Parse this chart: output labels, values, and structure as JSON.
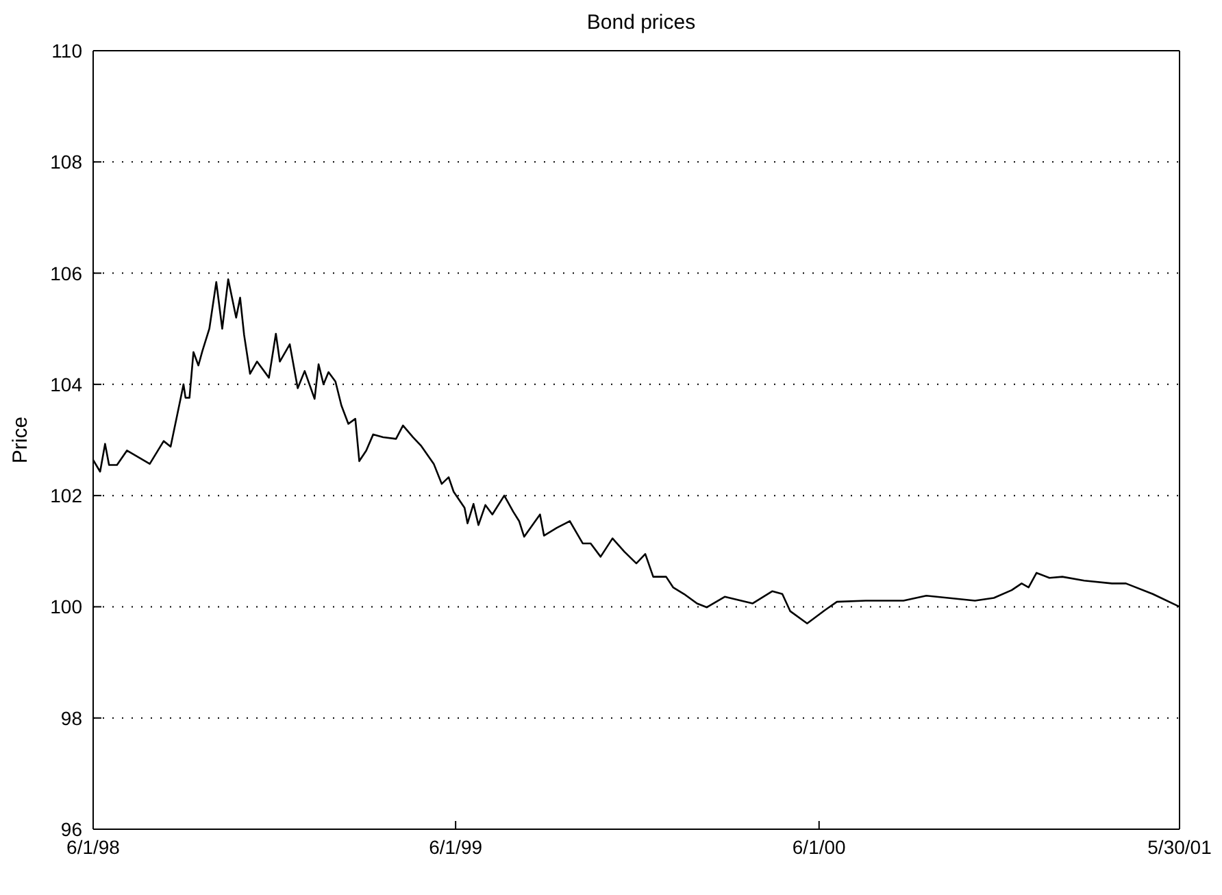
{
  "chart_data": {
    "type": "line",
    "title": "Bond prices",
    "ylabel": "Price",
    "x": [
      "1998-06-01",
      "1998-06-08",
      "1998-06-13",
      "1998-06-17",
      "1998-06-25",
      "1998-07-05",
      "1998-07-28",
      "1998-08-11",
      "1998-08-18",
      "1998-08-28",
      "1998-08-31",
      "1998-09-02",
      "1998-09-06",
      "1998-09-10",
      "1998-09-15",
      "1998-09-19",
      "1998-09-26",
      "1998-10-03",
      "1998-10-09",
      "1998-10-15",
      "1998-10-23",
      "1998-10-27",
      "1998-10-31",
      "1998-11-06",
      "1998-11-13",
      "1998-11-25",
      "1998-12-02",
      "1998-12-06",
      "1998-12-16",
      "1998-12-24",
      "1998-12-31",
      "1999-01-10",
      "1999-01-14",
      "1999-01-19",
      "1999-01-24",
      "1999-01-31",
      "1999-02-06",
      "1999-02-13",
      "1999-02-20",
      "1999-02-24",
      "1999-03-03",
      "1999-03-10",
      "1999-03-20",
      "1999-04-02",
      "1999-04-09",
      "1999-04-19",
      "1999-04-27",
      "1999-05-10",
      "1999-05-18",
      "1999-05-25",
      "1999-05-30",
      "1999-06-10",
      "1999-06-13",
      "1999-06-19",
      "1999-06-24",
      "1999-07-01",
      "1999-07-08",
      "1999-07-20",
      "1999-07-29",
      "1999-08-04",
      "1999-08-09",
      "1999-08-25",
      "1999-08-29",
      "1999-09-11",
      "1999-09-24",
      "1999-10-07",
      "1999-10-15",
      "1999-10-25",
      "1999-11-06",
      "1999-11-18",
      "1999-11-30",
      "1999-12-09",
      "1999-12-17",
      "1999-12-30",
      "2000-01-06",
      "2000-01-17",
      "2000-01-30",
      "2000-02-09",
      "2000-02-27",
      "2000-03-26",
      "2000-04-15",
      "2000-04-25",
      "2000-05-03",
      "2000-05-20",
      "2000-06-07",
      "2000-06-19",
      "2000-07-18",
      "2000-08-25",
      "2000-09-17",
      "2000-10-09",
      "2000-11-05",
      "2000-11-24",
      "2000-12-12",
      "2000-12-22",
      "2000-12-29",
      "2001-01-06",
      "2001-01-19",
      "2001-02-01",
      "2001-02-23",
      "2001-03-23",
      "2001-04-06",
      "2001-05-03",
      "2001-05-30"
    ],
    "series": [
      {
        "color": "#000000",
        "values": [
          102.64,
          102.43,
          102.93,
          102.55,
          102.55,
          102.81,
          102.57,
          102.98,
          102.88,
          103.74,
          104.0,
          103.76,
          103.76,
          104.58,
          104.34,
          104.6,
          105.0,
          105.84,
          105.0,
          105.89,
          105.2,
          105.56,
          104.89,
          104.19,
          104.41,
          104.12,
          104.91,
          104.41,
          104.72,
          103.93,
          104.24,
          103.74,
          104.36,
          104.0,
          104.22,
          104.05,
          103.62,
          103.29,
          103.38,
          102.62,
          102.81,
          103.1,
          103.05,
          103.02,
          103.26,
          103.05,
          102.9,
          102.57,
          102.21,
          102.33,
          102.07,
          101.78,
          101.5,
          101.85,
          101.47,
          101.83,
          101.66,
          102.0,
          101.71,
          101.54,
          101.26,
          101.66,
          101.28,
          101.42,
          101.54,
          101.14,
          101.14,
          100.9,
          101.23,
          100.99,
          100.78,
          100.95,
          100.54,
          100.54,
          100.35,
          100.23,
          100.06,
          99.99,
          100.18,
          100.06,
          100.28,
          100.23,
          99.92,
          99.7,
          99.94,
          100.09,
          100.11,
          100.11,
          100.2,
          100.16,
          100.11,
          100.16,
          100.3,
          100.42,
          100.35,
          100.61,
          100.52,
          100.54,
          100.47,
          100.42,
          100.42,
          100.23,
          100.0
        ]
      }
    ],
    "xlim": [
      "1998-06-01",
      "2001-05-30"
    ],
    "xticks": [
      {
        "value": "1998-06-01",
        "label": "6/1/98"
      },
      {
        "value": "1999-06-01",
        "label": "6/1/99"
      },
      {
        "value": "2000-06-01",
        "label": "6/1/00"
      },
      {
        "value": "2001-05-30",
        "label": "5/30/01"
      }
    ],
    "ylim": [
      96,
      110
    ],
    "yticks": [
      96,
      98,
      100,
      102,
      104,
      106,
      108,
      110
    ],
    "grid": "y",
    "marker": "none",
    "line_style": "solid"
  }
}
